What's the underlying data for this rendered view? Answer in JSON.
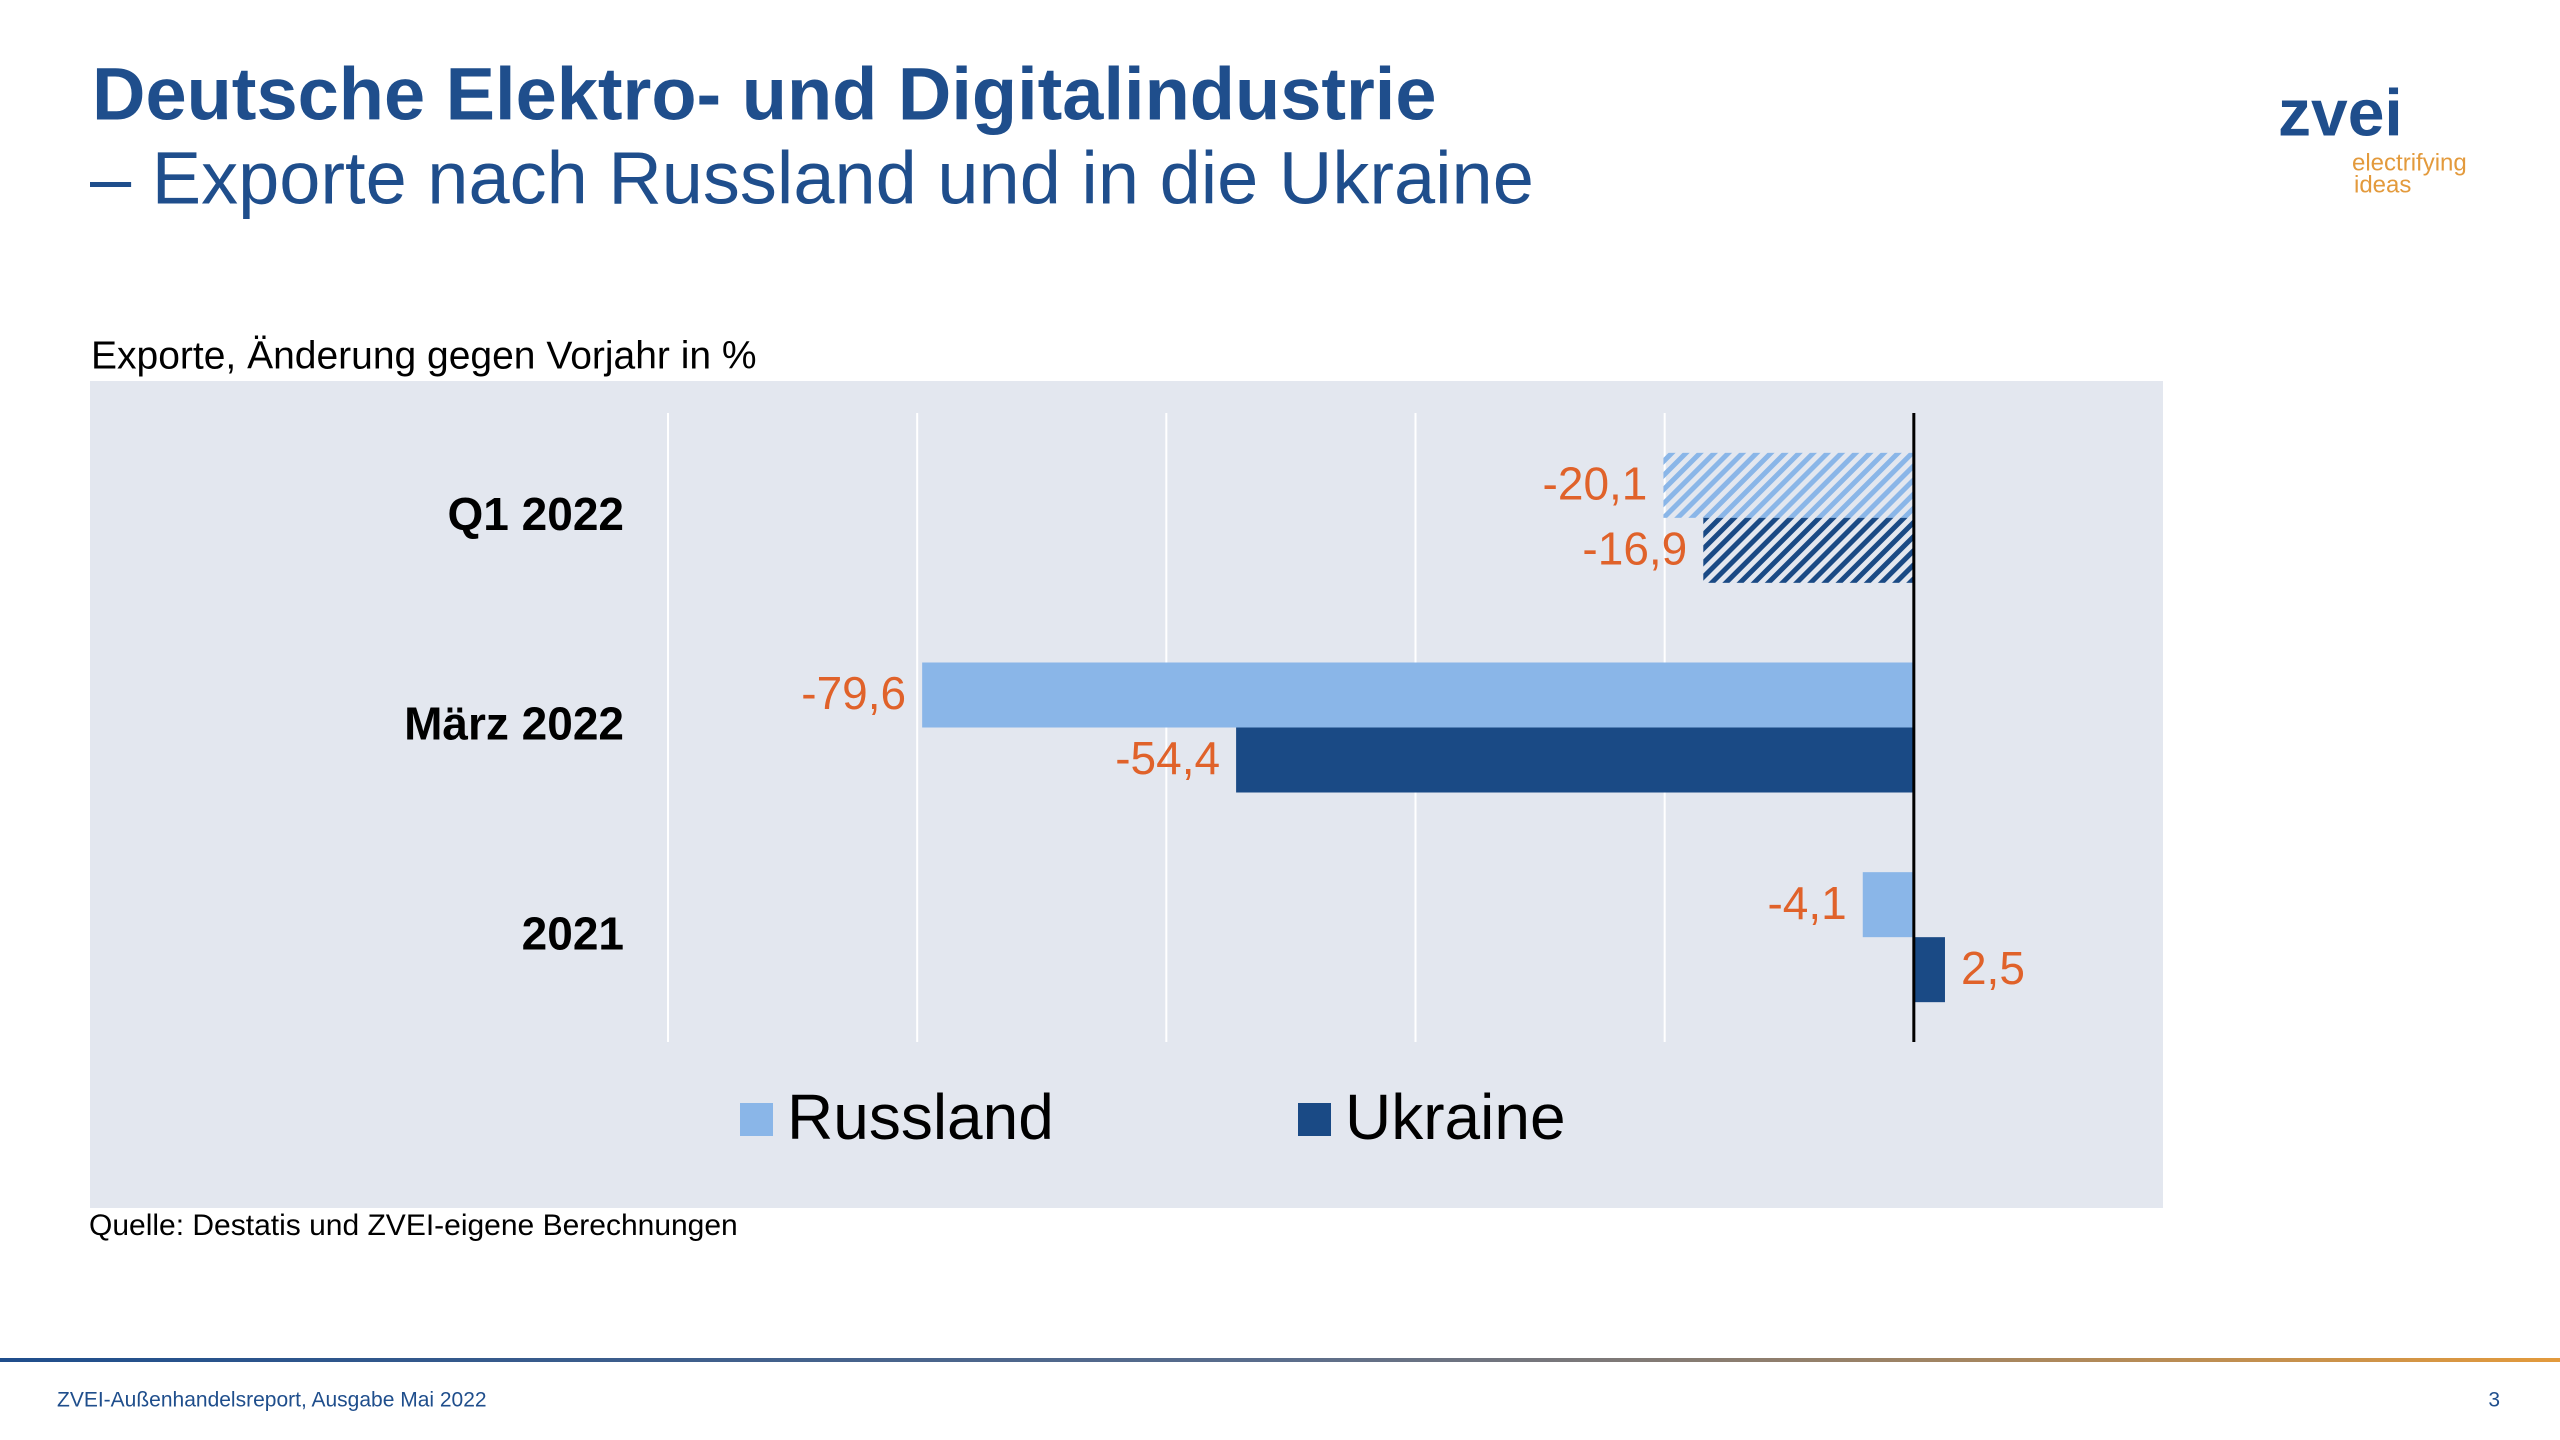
{
  "header": {
    "title": "Deutsche Elektro- und Digitalindustrie",
    "subtitle": "– Exporte nach Russland und in die Ukraine"
  },
  "logo": {
    "name": "zvei",
    "tagline_1": "electrifying",
    "tagline_2": "ideas"
  },
  "chart_data": {
    "type": "hbar",
    "title": "Exporte, Änderung gegen Vorjahr in %",
    "categories": [
      "Q1 2022",
      "März 2022",
      "2021"
    ],
    "hatched": [
      true,
      false,
      false
    ],
    "series": [
      {
        "name": "Russland",
        "color": "#8ab6e8",
        "values": [
          -20.1,
          -79.6,
          -4.1
        ],
        "value_labels": [
          "-20,1",
          "-79,6",
          "-4,1"
        ]
      },
      {
        "name": "Ukraine",
        "color": "#1a4a85",
        "values": [
          -16.9,
          -54.4,
          2.5
        ],
        "value_labels": [
          "-16,9",
          "-54,4",
          "2,5"
        ]
      }
    ],
    "xlim": [
      -100,
      20
    ],
    "xticks": [
      -100,
      -80,
      -60,
      -40,
      -20,
      0
    ],
    "grid": true,
    "label_color": "#e0622a",
    "legend": "bottom"
  },
  "source": "Quelle: Destatis und ZVEI-eigene Berechnungen",
  "footer": {
    "text": "ZVEI-Außenhandelsreport, Ausgabe Mai 2022",
    "page": "3"
  }
}
